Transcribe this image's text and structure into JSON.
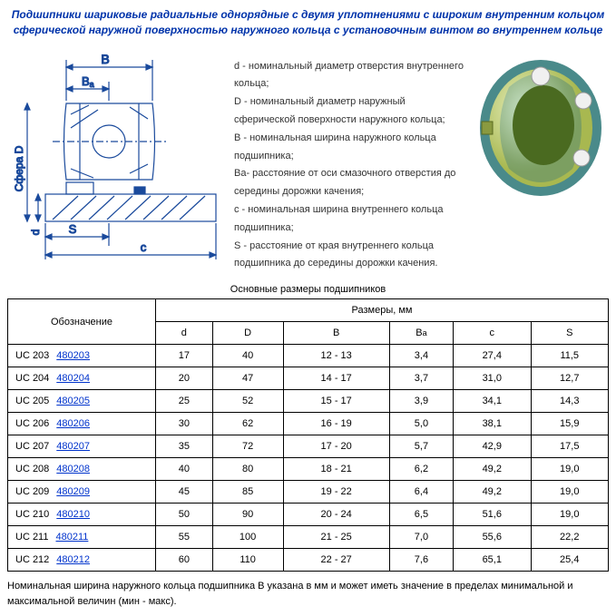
{
  "title_line1": "Подшипники шариковые радиальные однорядные с двумя уплотнениями с широким внутренним кольцом",
  "title_line2": "сферической наружной поверхностью наружного кольца с установочным винтом во внутреннем кольце",
  "diagram_labels": {
    "B": "B",
    "Ba": "Ba",
    "SphereD": "Сфера D",
    "d": "d",
    "S": "S",
    "c": "c"
  },
  "legend": [
    "d - номинальный диаметр отверстия внутреннего кольца;",
    "D - номинальный диаметр наружный сферической поверхности наружного кольца;",
    "B - номинальная ширина наружного кольца подшипника;",
    "Ba- расстояние от оси смазочного отверстия до середины дорожки качения;",
    "c - номинальная ширина внутреннего кольца подшипника;",
    "S - расстояние от края внутреннего кольца подшипника до середины дорожки качения."
  ],
  "table_caption": "Основные размеры подшипников",
  "header_designation": "Обозначение",
  "header_sizes": "Размеры, мм",
  "columns": [
    "d",
    "D",
    "B",
    "B",
    "c",
    "S"
  ],
  "ba_sub": "a",
  "rows": [
    {
      "name": "UC 203",
      "link": "480203",
      "d": "17",
      "D": "40",
      "B": "12 - 13",
      "Ba": "3,4",
      "c": "27,4",
      "S": "11,5"
    },
    {
      "name": "UC 204",
      "link": "480204",
      "d": "20",
      "D": "47",
      "B": "14 - 17",
      "Ba": "3,7",
      "c": "31,0",
      "S": "12,7"
    },
    {
      "name": "UC 205",
      "link": "480205",
      "d": "25",
      "D": "52",
      "B": "15 - 17",
      "Ba": "3,9",
      "c": "34,1",
      "S": "14,3"
    },
    {
      "name": "UC 206",
      "link": "480206",
      "d": "30",
      "D": "62",
      "B": "16 - 19",
      "Ba": "5,0",
      "c": "38,1",
      "S": "15,9"
    },
    {
      "name": "UC 207",
      "link": "480207",
      "d": "35",
      "D": "72",
      "B": "17 - 20",
      "Ba": "5,7",
      "c": "42,9",
      "S": "17,5"
    },
    {
      "name": "UC 208",
      "link": "480208",
      "d": "40",
      "D": "80",
      "B": "18 - 21",
      "Ba": "6,2",
      "c": "49,2",
      "S": "19,0"
    },
    {
      "name": "UC 209",
      "link": "480209",
      "d": "45",
      "D": "85",
      "B": "19 - 22",
      "Ba": "6,4",
      "c": "49,2",
      "S": "19,0"
    },
    {
      "name": "UC 210",
      "link": "480210",
      "d": "50",
      "D": "90",
      "B": "20 - 24",
      "Ba": "6,5",
      "c": "51,6",
      "S": "19,0"
    },
    {
      "name": "UC 211",
      "link": "480211",
      "d": "55",
      "D": "100",
      "B": "21 - 25",
      "Ba": "7,0",
      "c": "55,6",
      "S": "22,2"
    },
    {
      "name": "UC 212",
      "link": "480212",
      "d": "60",
      "D": "110",
      "B": "22 - 27",
      "Ba": "7,6",
      "c": "65,1",
      "S": "25,4"
    }
  ],
  "footnote": "Номинальная ширина наружного кольца подшипника B указана в мм и может иметь значение в пределах минимальной и максимальной величин (мин - макс).",
  "colors": {
    "title": "#0033aa",
    "link": "#0033cc",
    "diagram_line": "#1a4a9c",
    "diagram_hatch": "#2a5aaa",
    "render_body": "#c8d860",
    "render_ring": "#5aa0a0",
    "render_ball": "#e8e8e8"
  }
}
